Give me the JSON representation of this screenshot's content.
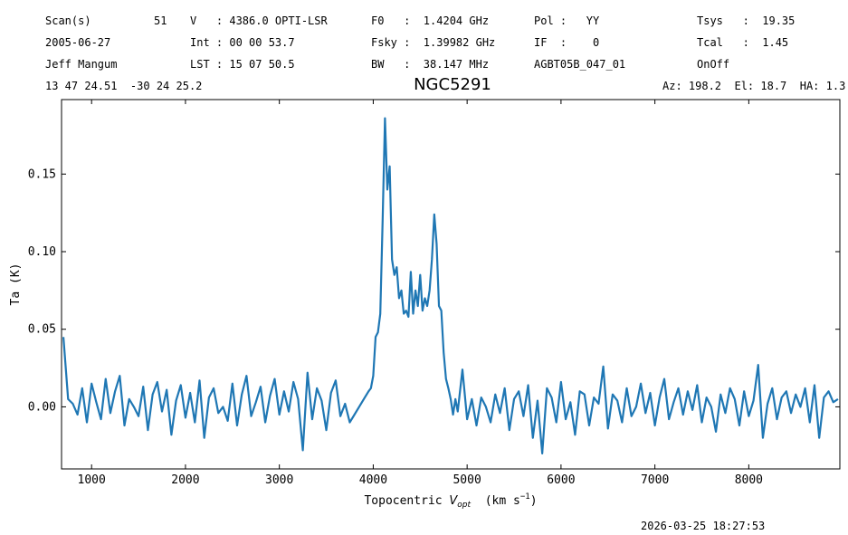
{
  "header": {
    "rows": [
      [
        "Scan(s)",
        "51",
        "V   : 4386.0 OPTI-LSR",
        "F0   :  1.4204 GHz",
        "Pol :   YY",
        "Tsys   :  19.35"
      ],
      [
        "2005-06-27",
        "Int : 00 00 53.7",
        "Fsky :  1.39982 GHz",
        "IF  :    0",
        "Tcal   :  1.45"
      ],
      [
        "Jeff Mangum",
        "LST : 15 07 50.5",
        "BW   :  38.147 MHz",
        "AGBT05B_047_01",
        "OnOff"
      ]
    ],
    "coords": "13 47 24.51  -30 24 25.2",
    "pointing": "Az: 198.2  El: 18.7  HA: 1.3"
  },
  "footer": "2026-03-25 18:27:53",
  "chart_data": {
    "type": "line",
    "title": "NGC5291",
    "y_label": "Ta (K)",
    "x_label_parts": [
      "Topocentric ",
      "V",
      "opt",
      "  (km s",
      "−1",
      ")"
    ],
    "color": "#1f77b4",
    "xlim": [
      680,
      8970
    ],
    "ylim": [
      -0.04,
      0.198
    ],
    "xticks": [
      1000,
      2000,
      3000,
      4000,
      5000,
      6000,
      7000,
      8000
    ],
    "yticks": [
      {
        "value": 0,
        "label": "0.00"
      },
      {
        "value": 0.05,
        "label": "0.05"
      },
      {
        "value": 0.1,
        "label": "0.10"
      },
      {
        "value": 0.15,
        "label": "0.15"
      }
    ],
    "x": [
      700,
      750,
      800,
      850,
      900,
      950,
      1000,
      1050,
      1100,
      1150,
      1200,
      1250,
      1300,
      1350,
      1400,
      1450,
      1500,
      1550,
      1600,
      1650,
      1700,
      1750,
      1800,
      1850,
      1900,
      1950,
      2000,
      2050,
      2100,
      2150,
      2200,
      2250,
      2300,
      2350,
      2400,
      2450,
      2500,
      2550,
      2600,
      2650,
      2700,
      2750,
      2800,
      2850,
      2900,
      2950,
      3000,
      3050,
      3100,
      3150,
      3200,
      3250,
      3300,
      3350,
      3400,
      3450,
      3500,
      3550,
      3600,
      3650,
      3700,
      3750,
      3800,
      3850,
      3900,
      3950,
      3975,
      4000,
      4025,
      4050,
      4075,
      4100,
      4125,
      4150,
      4175,
      4200,
      4225,
      4250,
      4275,
      4300,
      4325,
      4350,
      4375,
      4400,
      4425,
      4450,
      4475,
      4500,
      4525,
      4550,
      4575,
      4600,
      4625,
      4650,
      4675,
      4700,
      4725,
      4750,
      4775,
      4800,
      4825,
      4850,
      4875,
      4900,
      4950,
      5000,
      5050,
      5100,
      5150,
      5200,
      5250,
      5300,
      5350,
      5400,
      5450,
      5500,
      5550,
      5600,
      5650,
      5700,
      5750,
      5800,
      5850,
      5900,
      5950,
      6000,
      6050,
      6100,
      6150,
      6200,
      6250,
      6300,
      6350,
      6400,
      6450,
      6500,
      6550,
      6600,
      6650,
      6700,
      6750,
      6800,
      6850,
      6900,
      6950,
      7000,
      7050,
      7100,
      7150,
      7200,
      7250,
      7300,
      7350,
      7400,
      7450,
      7500,
      7550,
      7600,
      7650,
      7700,
      7750,
      7800,
      7850,
      7900,
      7950,
      8000,
      8050,
      8100,
      8150,
      8200,
      8250,
      8300,
      8350,
      8400,
      8450,
      8500,
      8550,
      8600,
      8650,
      8700,
      8750,
      8800,
      8850,
      8900,
      8950
    ],
    "values": [
      0.045,
      0.005,
      0.002,
      -0.005,
      0.012,
      -0.01,
      0.015,
      0.003,
      -0.008,
      0.018,
      -0.004,
      0.01,
      0.02,
      -0.012,
      0.005,
      0.0,
      -0.006,
      0.013,
      -0.015,
      0.008,
      0.016,
      -0.003,
      0.011,
      -0.018,
      0.004,
      0.014,
      -0.007,
      0.009,
      -0.01,
      0.017,
      -0.02,
      0.006,
      0.012,
      -0.004,
      0.0,
      -0.009,
      0.015,
      -0.012,
      0.008,
      0.02,
      -0.006,
      0.003,
      0.013,
      -0.01,
      0.007,
      0.018,
      -0.005,
      0.01,
      -0.003,
      0.016,
      0.005,
      -0.028,
      0.022,
      -0.008,
      0.012,
      0.004,
      -0.015,
      0.009,
      0.017,
      -0.006,
      0.002,
      -0.01,
      -0.005,
      0.0,
      0.005,
      0.01,
      0.012,
      0.02,
      0.045,
      0.048,
      0.06,
      0.12,
      0.186,
      0.14,
      0.155,
      0.095,
      0.085,
      0.09,
      0.07,
      0.075,
      0.06,
      0.062,
      0.058,
      0.087,
      0.06,
      0.075,
      0.065,
      0.085,
      0.062,
      0.07,
      0.065,
      0.075,
      0.095,
      0.124,
      0.105,
      0.065,
      0.062,
      0.035,
      0.018,
      0.012,
      0.005,
      -0.005,
      0.005,
      -0.003,
      0.024,
      -0.008,
      0.005,
      -0.012,
      0.006,
      0.0,
      -0.01,
      0.008,
      -0.004,
      0.012,
      -0.015,
      0.005,
      0.01,
      -0.006,
      0.014,
      -0.02,
      0.004,
      -0.03,
      0.012,
      0.006,
      -0.01,
      0.016,
      -0.008,
      0.003,
      -0.018,
      0.01,
      0.008,
      -0.012,
      0.006,
      0.002,
      0.026,
      -0.014,
      0.008,
      0.004,
      -0.01,
      0.012,
      -0.006,
      0.0,
      0.015,
      -0.004,
      0.009,
      -0.012,
      0.006,
      0.018,
      -0.008,
      0.003,
      0.012,
      -0.005,
      0.01,
      -0.002,
      0.014,
      -0.01,
      0.006,
      0.0,
      -0.016,
      0.008,
      -0.004,
      0.012,
      0.005,
      -0.012,
      0.01,
      -0.006,
      0.004,
      0.027,
      -0.02,
      0.002,
      0.012,
      -0.008,
      0.006,
      0.01,
      -0.004,
      0.008,
      0.0,
      0.012,
      -0.01,
      0.014,
      -0.02,
      0.006,
      0.01,
      0.003,
      0.005
    ]
  }
}
